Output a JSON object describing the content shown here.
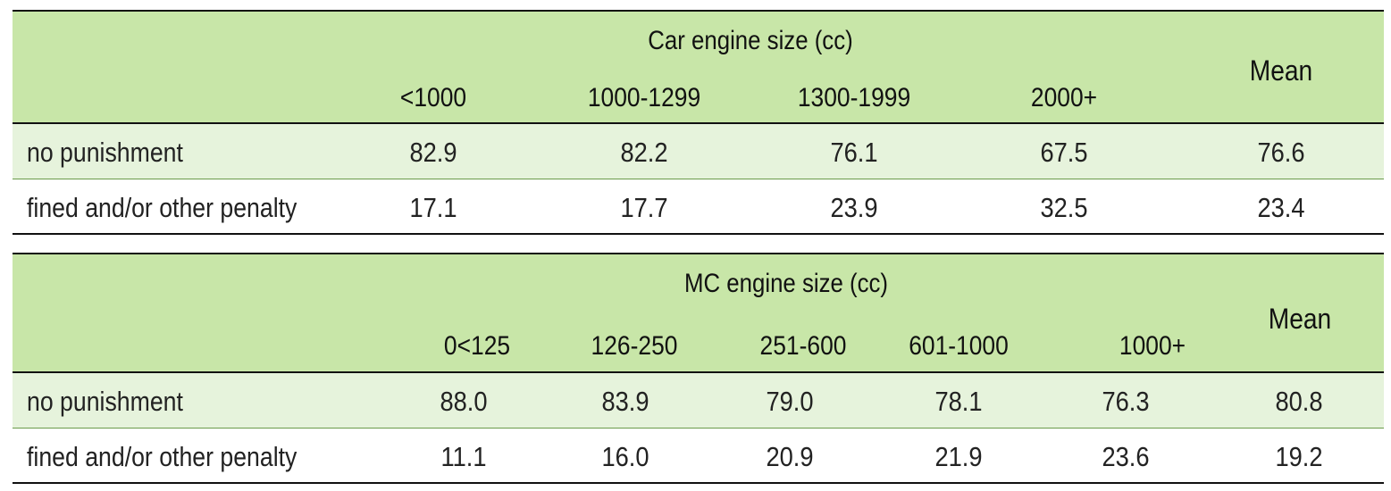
{
  "car_table": {
    "group_title": "Car engine size (cc)",
    "columns": [
      "<1000",
      "1000-1299",
      "1300-1999",
      "2000+"
    ],
    "mean_label": "Mean",
    "rows": [
      {
        "label": "no punishment",
        "values": [
          "82.9",
          "82.2",
          "76.1",
          "67.5"
        ],
        "mean": "76.6"
      },
      {
        "label": "fined and/or other penalty",
        "values": [
          "17.1",
          "17.7",
          "23.9",
          "32.5"
        ],
        "mean": "23.4"
      }
    ]
  },
  "mc_table": {
    "group_title": "MC engine size (cc)",
    "columns": [
      "0<125",
      "126-250",
      "251-600",
      "601-1000",
      "1000+"
    ],
    "mean_label": "Mean",
    "rows": [
      {
        "label": "no punishment",
        "values": [
          "88.0",
          "83.9",
          "79.0",
          "78.1",
          "76.3"
        ],
        "mean": "80.8"
      },
      {
        "label": "fined and/or other penalty",
        "values": [
          "11.1",
          "16.0",
          "20.9",
          "21.9",
          "23.6"
        ],
        "mean": "19.2"
      }
    ]
  }
}
